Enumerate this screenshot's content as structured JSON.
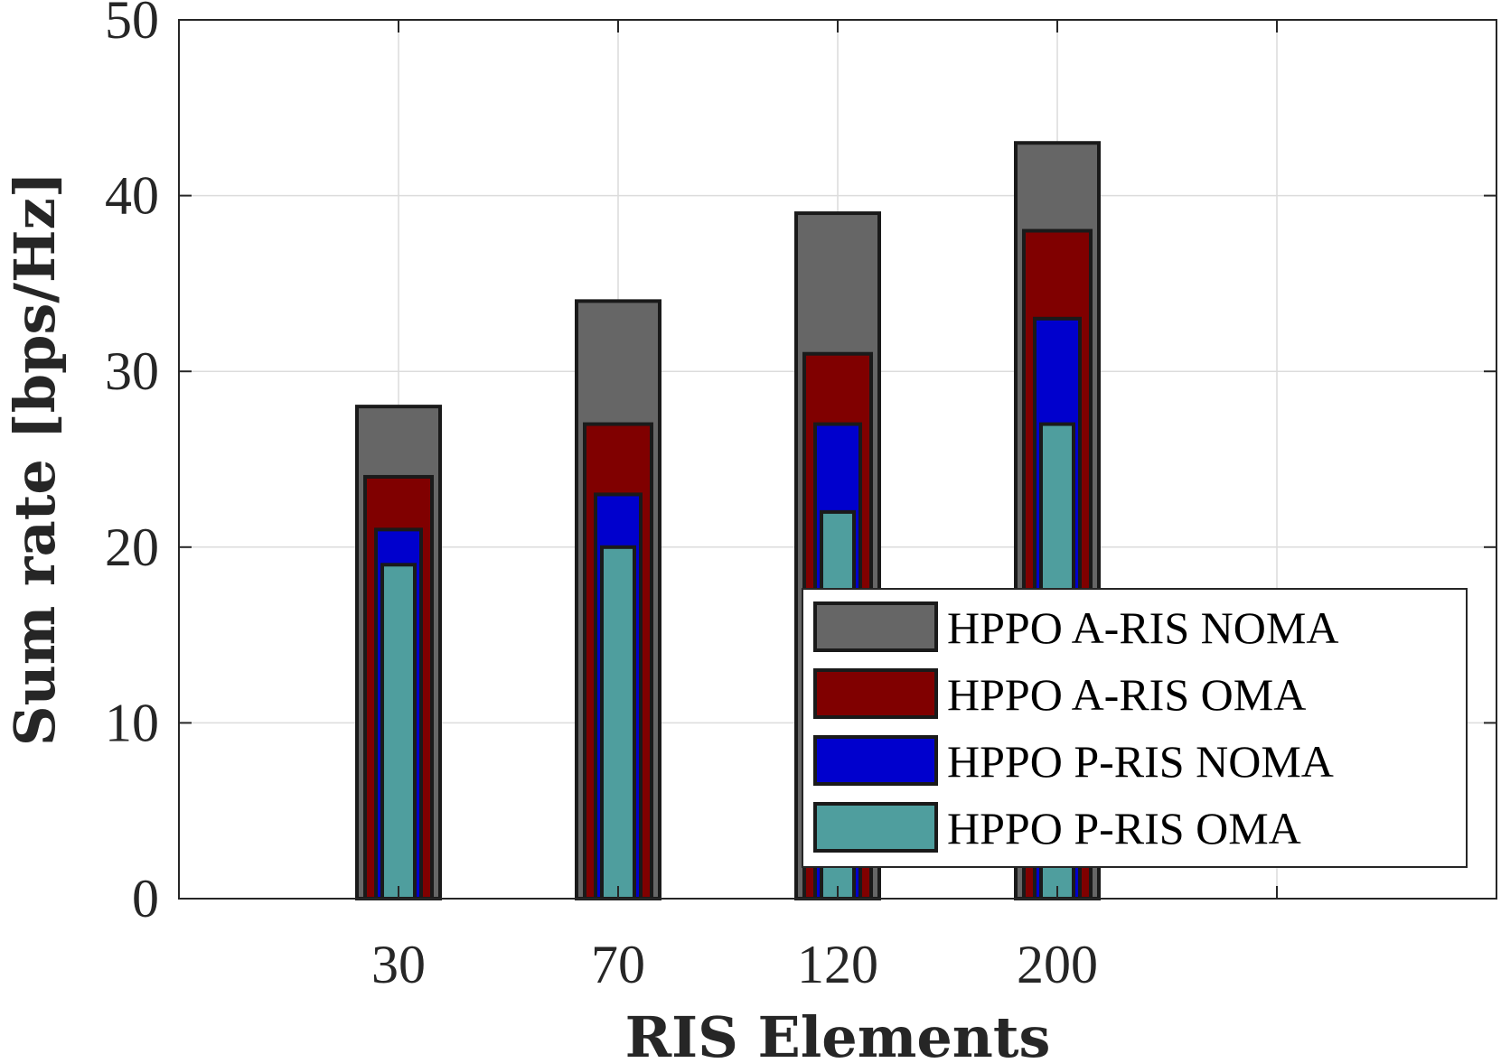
{
  "chart_data": {
    "type": "bar",
    "xlabel": "RIS Elements",
    "ylabel": "Sum rate [bps/Hz]",
    "categories": [
      "30",
      "70",
      "120",
      "200"
    ],
    "ylim": [
      0,
      50
    ],
    "yticks": [
      "0",
      "10",
      "20",
      "30",
      "40",
      "50"
    ],
    "grid": true,
    "legend_position": "bottom-right",
    "series": [
      {
        "name": "HPPO A-RIS NOMA",
        "color": "#666666",
        "values": [
          28,
          34,
          39,
          43
        ]
      },
      {
        "name": "HPPO A-RIS OMA",
        "color": "#800000",
        "values": [
          24,
          27,
          31,
          38
        ]
      },
      {
        "name": "HPPO P-RIS NOMA",
        "color": "#0000CD",
        "values": [
          21,
          23,
          27,
          33
        ]
      },
      {
        "name": "HPPO P-RIS OMA",
        "color": "#4F9E9E",
        "values": [
          19,
          20,
          22,
          27
        ]
      }
    ]
  }
}
